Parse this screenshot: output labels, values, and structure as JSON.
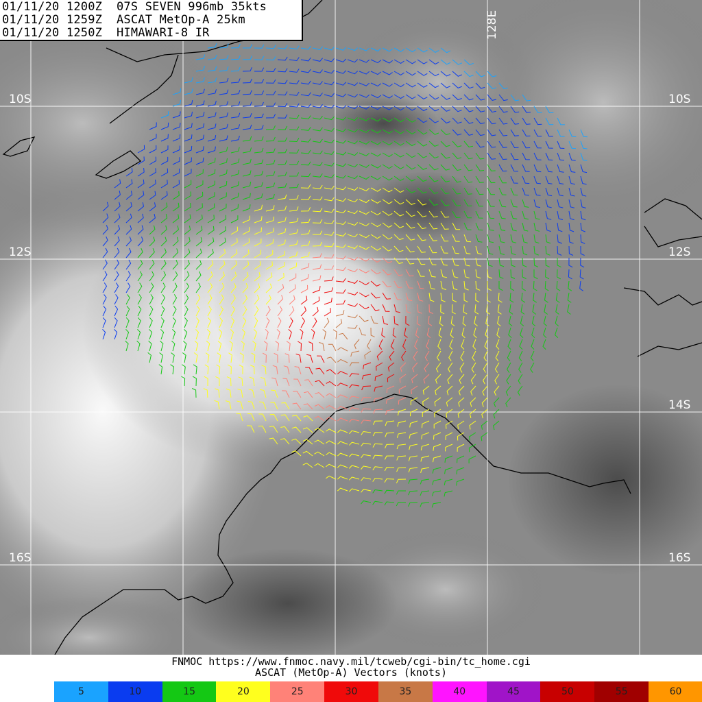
{
  "header": {
    "line1": "01/11/20 1200Z  07S SEVEN 996mb 35kts",
    "line2": "01/11/20 1259Z  ASCAT MetOp-A 25km",
    "line3": "01/11/20 1250Z  HIMAWARI-8 IR"
  },
  "map": {
    "latitudes": [
      "10S",
      "12S",
      "14S",
      "16S"
    ],
    "longitude": "128E"
  },
  "footer": {
    "url_line": "FNMOC https://www.fnmoc.navy.mil/tcweb/cgi-bin/tc_home.cgi",
    "legend_title": "ASCAT (MetOp-A) Vectors (knots)"
  },
  "colorbar": [
    {
      "label": "5",
      "color": "#1aa3ff"
    },
    {
      "label": "10",
      "color": "#0a3cf0"
    },
    {
      "label": "15",
      "color": "#14c814"
    },
    {
      "label": "20",
      "color": "#ffff1e"
    },
    {
      "label": "25",
      "color": "#ff8278"
    },
    {
      "label": "30",
      "color": "#f00a0a"
    },
    {
      "label": "35",
      "color": "#c87846"
    },
    {
      "label": "40",
      "color": "#ff14ff"
    },
    {
      "label": "45",
      "color": "#a014c8"
    },
    {
      "label": "50",
      "color": "#c80000"
    },
    {
      "label": "55",
      "color": "#a00000"
    },
    {
      "label": "60",
      "color": "#ff9600"
    }
  ],
  "storm_center": {
    "lat": -13.3,
    "lon": 126.0
  }
}
